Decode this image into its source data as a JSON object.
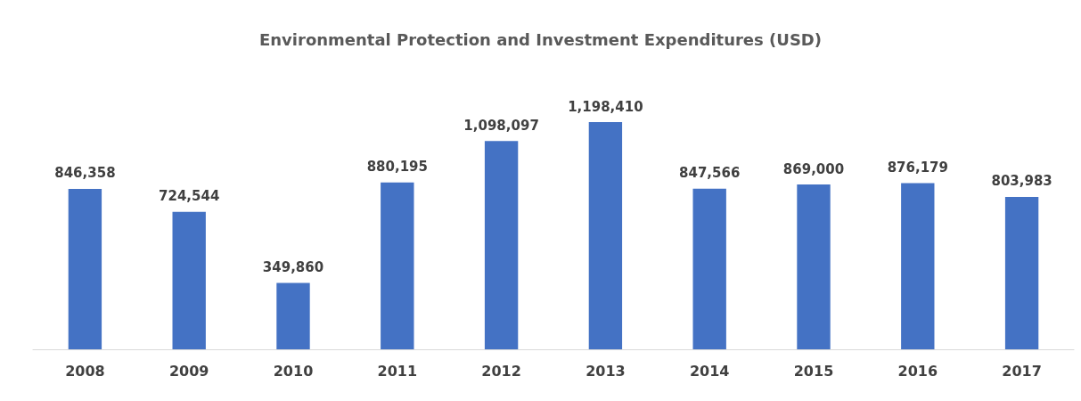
{
  "chart_data": {
    "type": "bar",
    "title": "Environmental Protection and Investment Expenditures (USD)",
    "categories": [
      "2008",
      "2009",
      "2010",
      "2011",
      "2012",
      "2013",
      "2014",
      "2015",
      "2016",
      "2017"
    ],
    "values": [
      846358,
      724544,
      349860,
      880195,
      1098097,
      1198410,
      847566,
      869000,
      876179,
      803983
    ],
    "value_labels": [
      "846,358",
      "724,544",
      "349,860",
      "880,195",
      "1,098,097",
      "1,198,410",
      "847,566",
      "869,000",
      "876,179",
      "803,983"
    ],
    "color": "#4472c4"
  }
}
